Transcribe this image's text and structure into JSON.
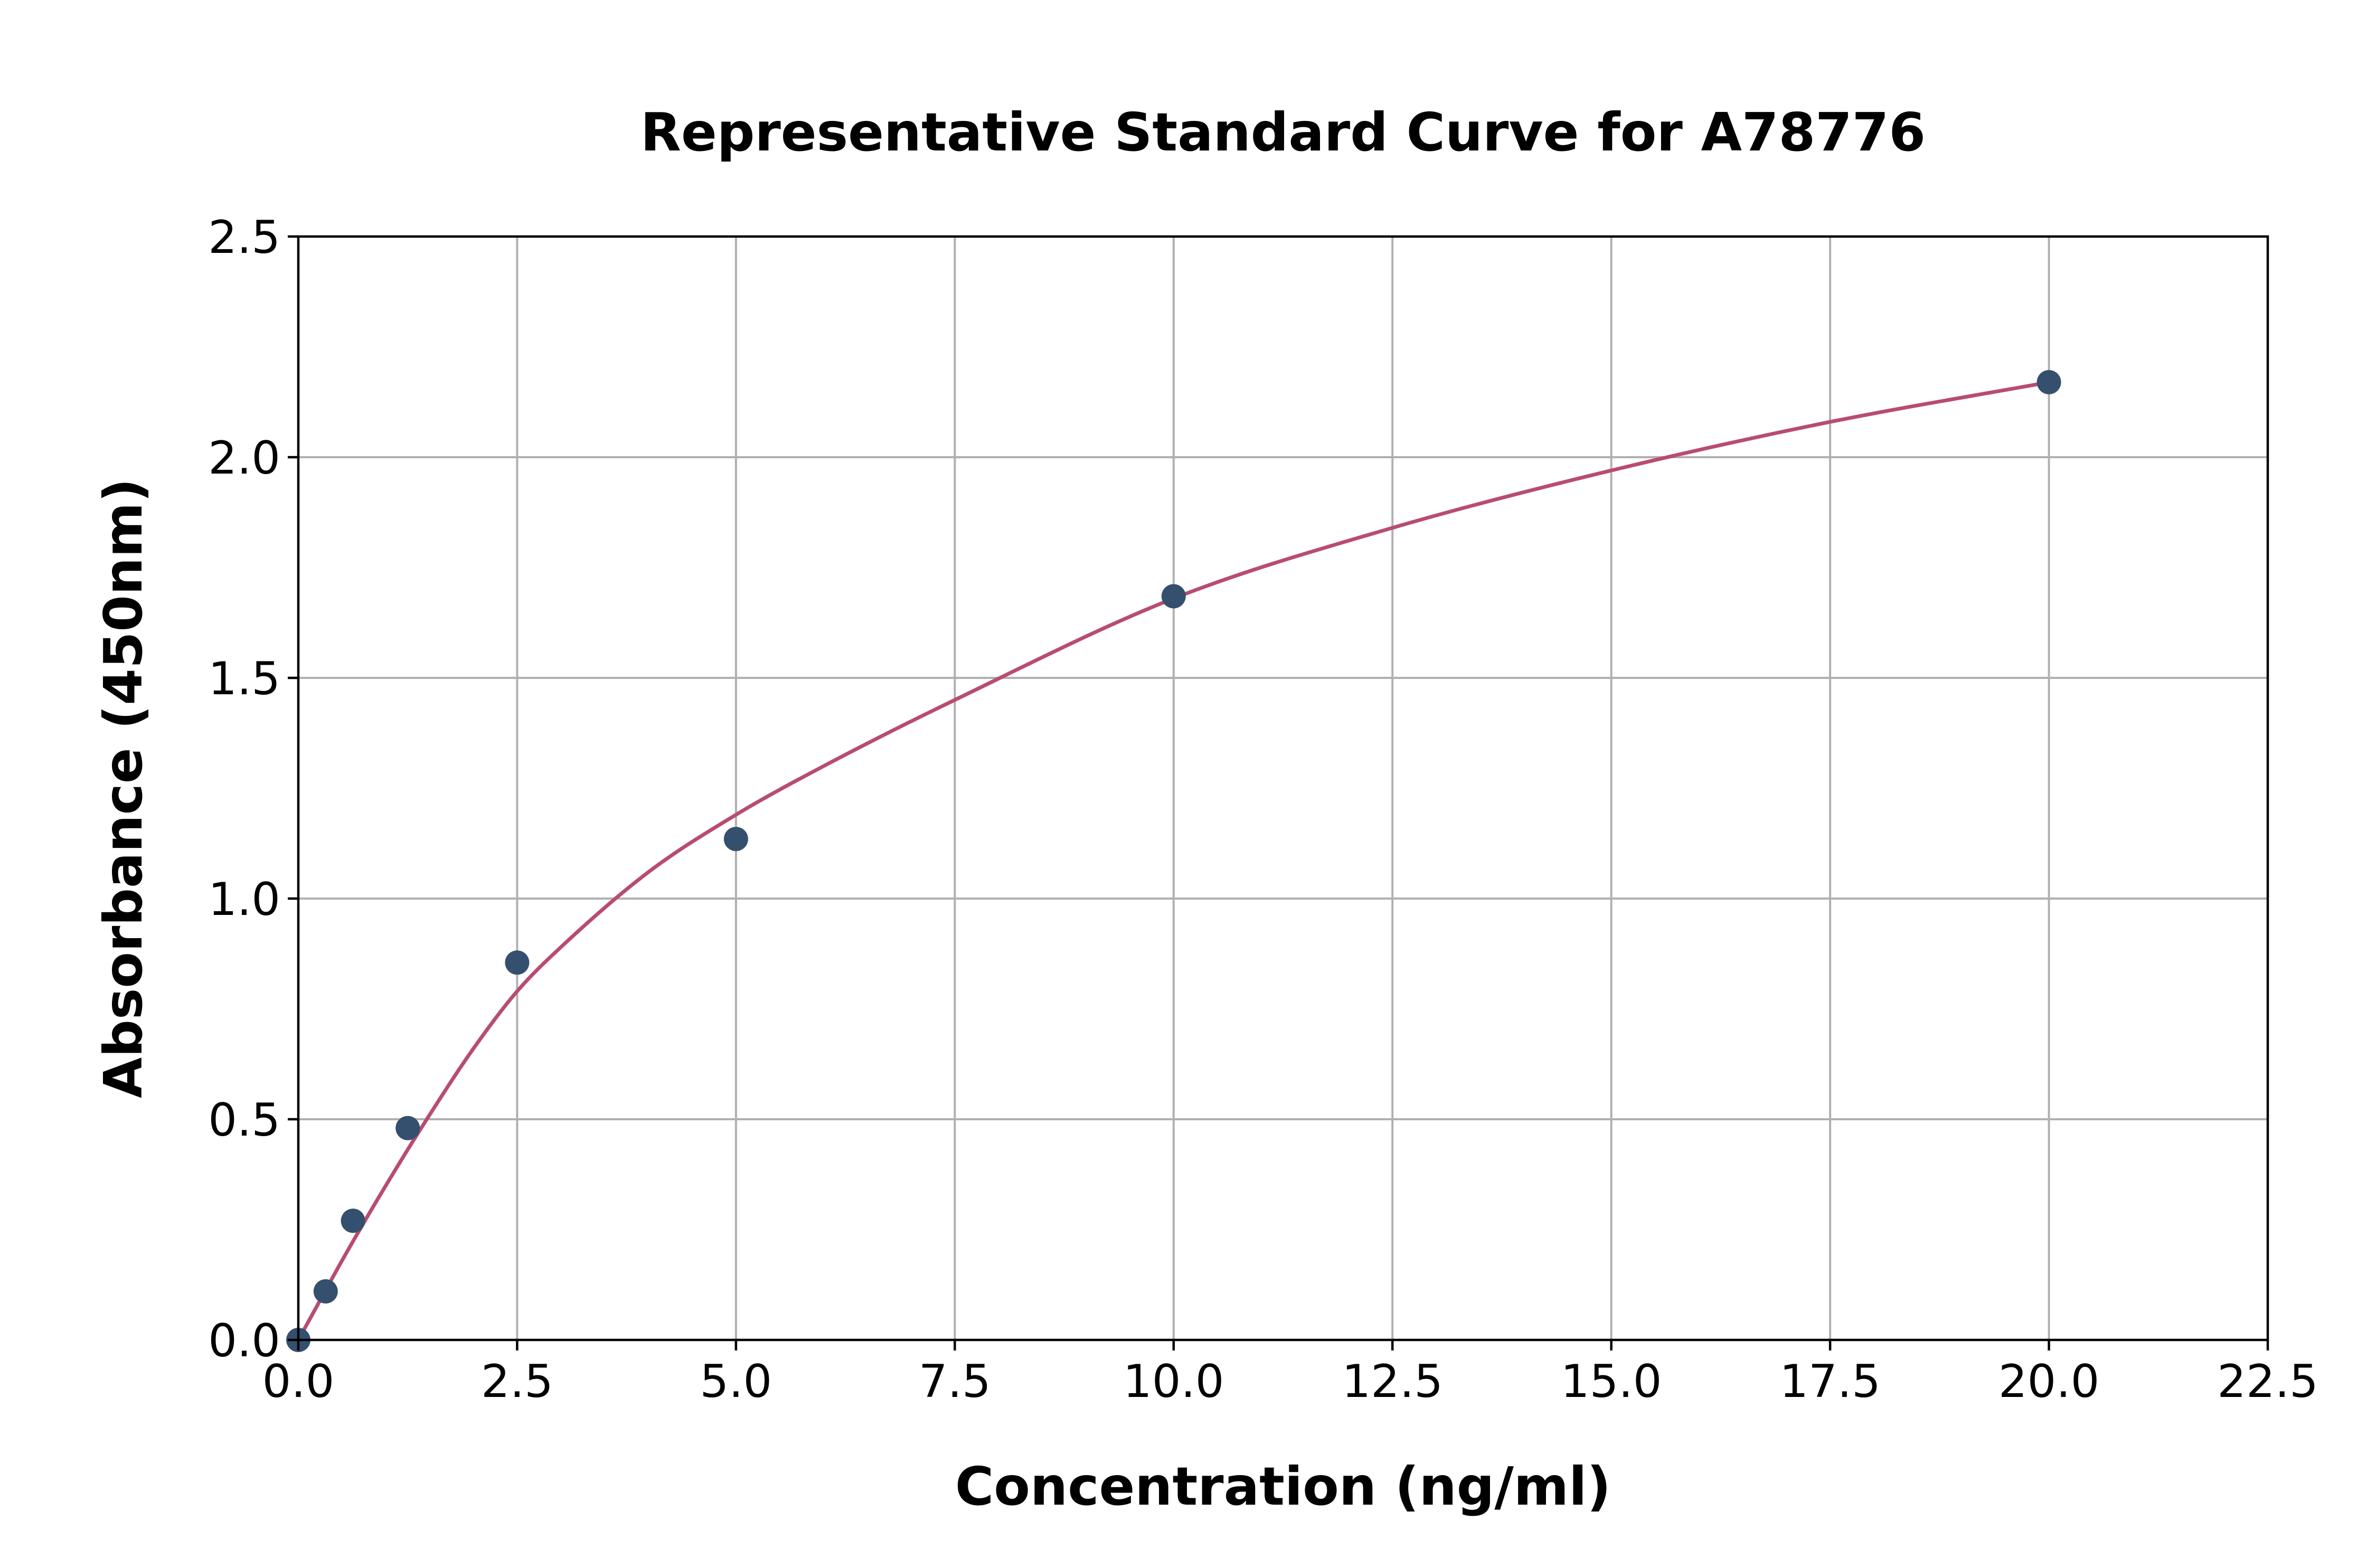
{
  "chart_data": {
    "type": "scatter",
    "title": "Representative Standard Curve for A78776",
    "xlabel": "Concentration (ng/ml)",
    "ylabel": "Absorbance (450nm)",
    "xlim": [
      0,
      22.5
    ],
    "ylim": [
      0,
      2.5
    ],
    "xticks": [
      "0.0",
      "2.5",
      "5.0",
      "7.5",
      "10.0",
      "12.5",
      "15.0",
      "17.5",
      "20.0",
      "22.5"
    ],
    "yticks": [
      "0.0",
      "0.5",
      "1.0",
      "1.5",
      "2.0",
      "2.5"
    ],
    "grid": true,
    "series": [
      {
        "kind": "points",
        "x": [
          0,
          0.3125,
          0.625,
          1.25,
          2.5,
          5,
          10,
          20
        ],
        "y": [
          0.0,
          0.11,
          0.27,
          0.48,
          0.855,
          1.135,
          1.685,
          2.17
        ],
        "color": "#34506e"
      },
      {
        "kind": "fitted-curve",
        "x": [
          0,
          0.25,
          0.5,
          1,
          1.5,
          2,
          2.5,
          3,
          4,
          5,
          6,
          7.5,
          10,
          12.5,
          15,
          17.5,
          20
        ],
        "y": [
          0.0,
          0.09,
          0.18,
          0.35,
          0.51,
          0.66,
          0.79,
          0.89,
          1.06,
          1.19,
          1.3,
          1.45,
          1.68,
          1.84,
          1.97,
          2.08,
          2.17
        ],
        "color": "#b84c72"
      }
    ]
  }
}
